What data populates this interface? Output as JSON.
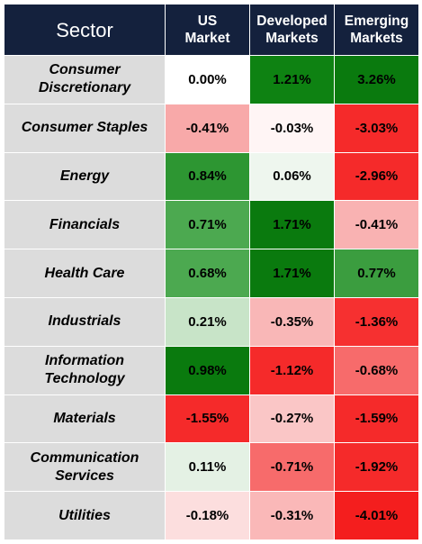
{
  "chart_data": {
    "type": "heatmap",
    "header": {
      "sector": "Sector",
      "columns": [
        "US\nMarket",
        "Developed\nMarkets",
        "Emerging\nMarkets"
      ]
    },
    "rows": [
      {
        "sector": "Consumer\nDiscretionary",
        "cells": [
          {
            "text": "0.00%",
            "value": 0.0,
            "color": "#ffffff"
          },
          {
            "text": "1.21%",
            "value": 1.21,
            "color": "#0e8212"
          },
          {
            "text": "3.26%",
            "value": 3.26,
            "color": "#0a7a0e"
          }
        ]
      },
      {
        "sector": "Consumer Staples",
        "cells": [
          {
            "text": "-0.41%",
            "value": -0.41,
            "color": "#f8a9a9"
          },
          {
            "text": "-0.03%",
            "value": -0.03,
            "color": "#fff5f5"
          },
          {
            "text": "-3.03%",
            "value": -3.03,
            "color": "#f52a2a"
          }
        ]
      },
      {
        "sector": "Energy",
        "cells": [
          {
            "text": "0.84%",
            "value": 0.84,
            "color": "#2d9632"
          },
          {
            "text": "0.06%",
            "value": 0.06,
            "color": "#eef6ee"
          },
          {
            "text": "-2.96%",
            "value": -2.96,
            "color": "#f52a2a"
          }
        ]
      },
      {
        "sector": "Financials",
        "cells": [
          {
            "text": "0.71%",
            "value": 0.71,
            "color": "#4ca950"
          },
          {
            "text": "1.71%",
            "value": 1.71,
            "color": "#0a7a0e"
          },
          {
            "text": "-0.41%",
            "value": -0.41,
            "color": "#f9b2b2"
          }
        ]
      },
      {
        "sector": "Health Care",
        "cells": [
          {
            "text": "0.68%",
            "value": 0.68,
            "color": "#4ca950"
          },
          {
            "text": "1.71%",
            "value": 1.71,
            "color": "#0a7a0e"
          },
          {
            "text": "0.77%",
            "value": 0.77,
            "color": "#3b9d3f"
          }
        ]
      },
      {
        "sector": "Industrials",
        "cells": [
          {
            "text": "0.21%",
            "value": 0.21,
            "color": "#c8e4c8"
          },
          {
            "text": "-0.35%",
            "value": -0.35,
            "color": "#f9b7b7"
          },
          {
            "text": "-1.36%",
            "value": -1.36,
            "color": "#f63030"
          }
        ]
      },
      {
        "sector": "Information\nTechnology",
        "cells": [
          {
            "text": "0.98%",
            "value": 0.98,
            "color": "#0a7a0e"
          },
          {
            "text": "-1.12%",
            "value": -1.12,
            "color": "#f52a2a"
          },
          {
            "text": "-0.68%",
            "value": -0.68,
            "color": "#f76b6b"
          }
        ]
      },
      {
        "sector": "Materials",
        "cells": [
          {
            "text": "-1.55%",
            "value": -1.55,
            "color": "#f52a2a"
          },
          {
            "text": "-0.27%",
            "value": -0.27,
            "color": "#fac6c6"
          },
          {
            "text": "-1.59%",
            "value": -1.59,
            "color": "#f52a2a"
          }
        ]
      },
      {
        "sector": "Communication\nServices",
        "cells": [
          {
            "text": "0.11%",
            "value": 0.11,
            "color": "#e4f1e4"
          },
          {
            "text": "-0.71%",
            "value": -0.71,
            "color": "#f76b6b"
          },
          {
            "text": "-1.92%",
            "value": -1.92,
            "color": "#f52a2a"
          }
        ]
      },
      {
        "sector": "Utilities",
        "cells": [
          {
            "text": "-0.18%",
            "value": -0.18,
            "color": "#fcdede"
          },
          {
            "text": "-0.31%",
            "value": -0.31,
            "color": "#fab8b8"
          },
          {
            "text": "-4.01%",
            "value": -4.01,
            "color": "#f41e1e"
          }
        ]
      }
    ]
  }
}
